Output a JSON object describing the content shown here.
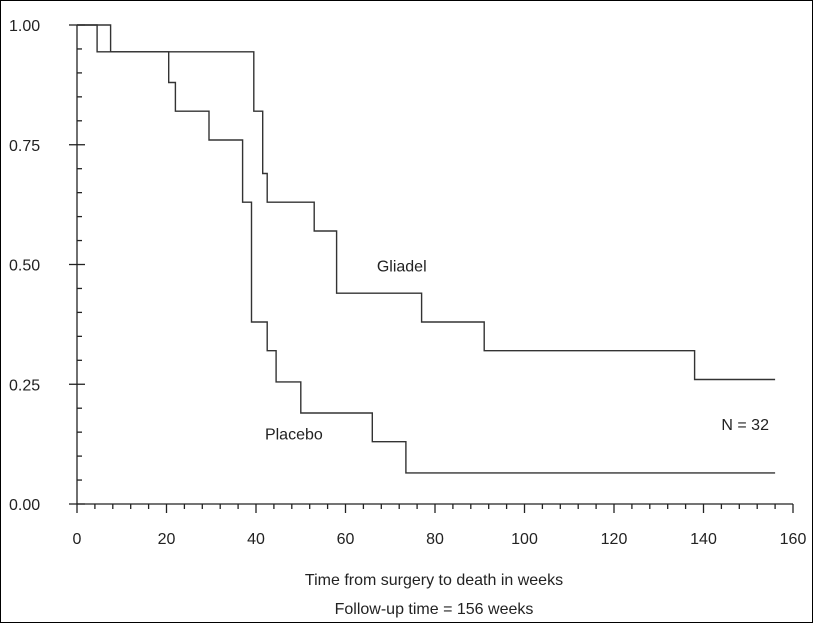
{
  "chart_data": {
    "type": "line",
    "title": "",
    "xlabel": "Time from surgery to death in weeks",
    "subcaption": "Follow-up time = 156 weeks",
    "ylabel": "",
    "xlim": [
      0,
      160
    ],
    "ylim": [
      0,
      1
    ],
    "x_ticks": [
      0,
      20,
      40,
      60,
      80,
      100,
      120,
      140,
      160
    ],
    "x_tick_labels": [
      "0",
      "20",
      "40",
      "60",
      "80",
      "100",
      "120",
      "140",
      "160"
    ],
    "y_ticks": [
      0,
      0.25,
      0.5,
      0.75,
      1.0
    ],
    "y_tick_labels": [
      "0.00",
      "0.25",
      "0.50",
      "0.75",
      "1.00"
    ],
    "grid": false,
    "step": true,
    "series": [
      {
        "name": "Gliadel",
        "points": [
          [
            0,
            1.0
          ],
          [
            7.5,
            1.0
          ],
          [
            7.5,
            0.944
          ],
          [
            39.5,
            0.944
          ],
          [
            39.5,
            0.82
          ],
          [
            41.5,
            0.82
          ],
          [
            41.5,
            0.69
          ],
          [
            42.5,
            0.69
          ],
          [
            42.5,
            0.63
          ],
          [
            53,
            0.63
          ],
          [
            53,
            0.57
          ],
          [
            58,
            0.57
          ],
          [
            58,
            0.44
          ],
          [
            77,
            0.44
          ],
          [
            77,
            0.38
          ],
          [
            91,
            0.38
          ],
          [
            91,
            0.32
          ],
          [
            138,
            0.32
          ],
          [
            138,
            0.26
          ],
          [
            156,
            0.26
          ]
        ]
      },
      {
        "name": "Placebo",
        "points": [
          [
            0,
            1.0
          ],
          [
            4.5,
            1.0
          ],
          [
            4.5,
            0.944
          ],
          [
            20.5,
            0.944
          ],
          [
            20.5,
            0.88
          ],
          [
            22,
            0.88
          ],
          [
            22,
            0.82
          ],
          [
            29.5,
            0.82
          ],
          [
            29.5,
            0.76
          ],
          [
            37,
            0.76
          ],
          [
            37,
            0.63
          ],
          [
            39,
            0.63
          ],
          [
            39,
            0.38
          ],
          [
            42.5,
            0.38
          ],
          [
            42.5,
            0.32
          ],
          [
            44.5,
            0.32
          ],
          [
            44.5,
            0.255
          ],
          [
            50,
            0.255
          ],
          [
            50,
            0.19
          ],
          [
            66,
            0.19
          ],
          [
            66,
            0.13
          ],
          [
            73.5,
            0.13
          ],
          [
            73.5,
            0.065
          ],
          [
            156,
            0.065
          ]
        ]
      }
    ],
    "annotations": [
      {
        "text": "Gliadel",
        "x": 67,
        "y": 0.485
      },
      {
        "text": "Placebo",
        "x": 42,
        "y": 0.135
      },
      {
        "text": "N = 32",
        "x": 144,
        "y": 0.155
      }
    ]
  }
}
